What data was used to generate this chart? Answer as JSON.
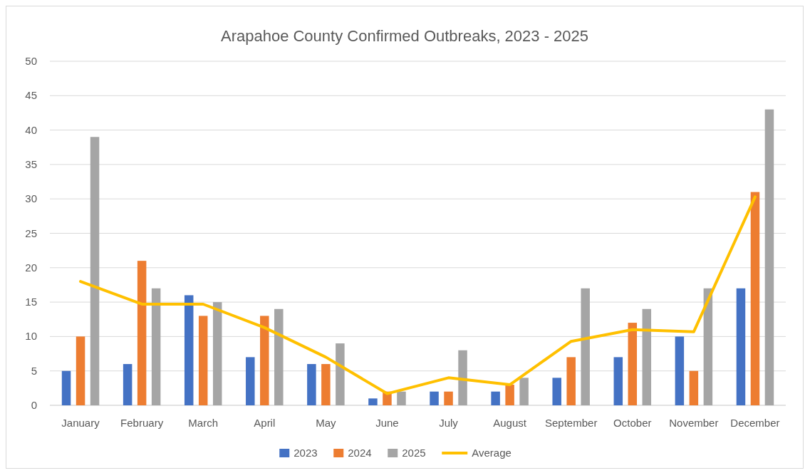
{
  "chart_data": {
    "type": "bar",
    "title": "Arapahoe County Confirmed Outbreaks, 2023 - 2025",
    "categories": [
      "January",
      "February",
      "March",
      "April",
      "May",
      "June",
      "July",
      "August",
      "September",
      "October",
      "November",
      "December"
    ],
    "series": [
      {
        "name": "2023",
        "color": "#4472c4",
        "values": [
          5,
          6,
          16,
          7,
          6,
          1,
          2,
          2,
          4,
          7,
          10,
          17
        ]
      },
      {
        "name": "2024",
        "color": "#ed7d31",
        "values": [
          10,
          21,
          13,
          13,
          6,
          2,
          2,
          3,
          7,
          12,
          5,
          31
        ]
      },
      {
        "name": "2025",
        "color": "#a5a5a5",
        "values": [
          39,
          17,
          15,
          14,
          9,
          2,
          8,
          4,
          17,
          14,
          17,
          43
        ]
      },
      {
        "name": "Average",
        "type": "line",
        "color": "#ffc000",
        "marker": "none",
        "values": [
          18,
          14.7,
          14.7,
          11.3,
          7,
          1.7,
          4,
          3,
          9.3,
          11,
          10.7,
          30.3
        ]
      }
    ],
    "ylim": [
      0,
      50
    ],
    "yticks": [
      0,
      5,
      10,
      15,
      20,
      25,
      30,
      35,
      40,
      45,
      50
    ],
    "grid": "y",
    "legend": "bottom"
  }
}
